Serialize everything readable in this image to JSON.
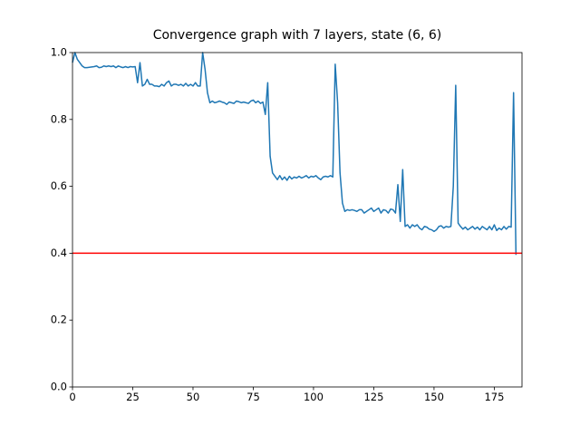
{
  "chart_data": {
    "type": "line",
    "title": "Convergence graph with 7 layers, state (6, 6)",
    "series": [
      {
        "color": "#1f77b4",
        "values": [
          0.97,
          1.0,
          0.98,
          0.97,
          0.96,
          0.955,
          0.955,
          0.956,
          0.957,
          0.958,
          0.96,
          0.955,
          0.956,
          0.96,
          0.958,
          0.96,
          0.958,
          0.96,
          0.955,
          0.96,
          0.957,
          0.955,
          0.958,
          0.955,
          0.958,
          0.957,
          0.958,
          0.91,
          0.97,
          0.9,
          0.905,
          0.92,
          0.905,
          0.905,
          0.9,
          0.9,
          0.898,
          0.905,
          0.9,
          0.91,
          0.915,
          0.9,
          0.905,
          0.905,
          0.902,
          0.905,
          0.9,
          0.908,
          0.9,
          0.905,
          0.9,
          0.91,
          0.9,
          0.9,
          1.0,
          0.95,
          0.88,
          0.85,
          0.855,
          0.85,
          0.852,
          0.855,
          0.852,
          0.85,
          0.845,
          0.852,
          0.85,
          0.848,
          0.855,
          0.853,
          0.85,
          0.852,
          0.85,
          0.848,
          0.855,
          0.858,
          0.85,
          0.855,
          0.848,
          0.852,
          0.815,
          0.91,
          0.69,
          0.64,
          0.63,
          0.62,
          0.632,
          0.62,
          0.628,
          0.618,
          0.63,
          0.622,
          0.628,
          0.625,
          0.63,
          0.625,
          0.628,
          0.632,
          0.625,
          0.63,
          0.628,
          0.632,
          0.625,
          0.62,
          0.628,
          0.63,
          0.628,
          0.632,
          0.628,
          0.965,
          0.85,
          0.64,
          0.55,
          0.525,
          0.53,
          0.528,
          0.53,
          0.528,
          0.525,
          0.53,
          0.53,
          0.52,
          0.525,
          0.53,
          0.535,
          0.525,
          0.53,
          0.535,
          0.52,
          0.53,
          0.528,
          0.52,
          0.532,
          0.53,
          0.52,
          0.605,
          0.495,
          0.65,
          0.48,
          0.485,
          0.475,
          0.485,
          0.48,
          0.485,
          0.475,
          0.47,
          0.48,
          0.478,
          0.472,
          0.47,
          0.465,
          0.47,
          0.48,
          0.482,
          0.475,
          0.48,
          0.478,
          0.48,
          0.6,
          0.902,
          0.49,
          0.48,
          0.472,
          0.478,
          0.47,
          0.475,
          0.48,
          0.472,
          0.478,
          0.47,
          0.48,
          0.475,
          0.47,
          0.48,
          0.47,
          0.485,
          0.468,
          0.475,
          0.47,
          0.48,
          0.472,
          0.48,
          0.478,
          0.88,
          0.395
        ]
      }
    ],
    "reference_line": {
      "value": 0.4,
      "color": "#ff0000"
    },
    "xlim": [
      0,
      186.5
    ],
    "xticks": [
      0,
      25,
      50,
      75,
      100,
      125,
      150,
      175
    ],
    "ylim": [
      0,
      1
    ],
    "yticks": [
      {
        "value": 0,
        "label": "0.0"
      },
      0.2,
      0.4,
      0.6,
      0.8,
      {
        "value": 1,
        "label": "1.0"
      }
    ],
    "grid": false
  }
}
